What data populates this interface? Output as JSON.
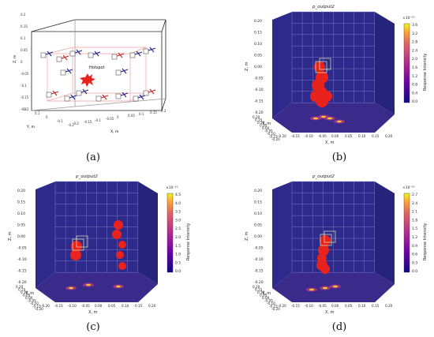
{
  "panels": {
    "a": {
      "caption": "(a)",
      "hotspot_label": "Hotspot",
      "z_ticks": [
        "0.2",
        "0.15",
        "0.1",
        "0.05",
        "0",
        "-0.05",
        "-0.1",
        "-0.15",
        "-0.2"
      ],
      "z_label": "Z, m",
      "y_ticks": [
        "0.2",
        "0.1",
        "0",
        "-0.1",
        "-0.2"
      ],
      "y_label": "Y, m",
      "x_ticks": [
        "-0.2",
        "-0.15",
        "-0.1",
        "-0.05",
        "0",
        "0.05",
        "0.1",
        "0.15",
        "0.2"
      ],
      "x_label": "X, m"
    },
    "b": {
      "caption": "(b)",
      "title": "p_output2",
      "colorbar": {
        "exponent": "×10⁻¹⁰",
        "ticks": [
          "3.6",
          "3.2",
          "2.8",
          "2.4",
          "2.0",
          "1.6",
          "1.2",
          "0.8",
          "0.4",
          "0.0"
        ],
        "label": "Response Intensity"
      }
    },
    "c": {
      "caption": "(c)",
      "title": "p_output2",
      "colorbar": {
        "exponent": "×10⁻¹⁰",
        "ticks": [
          "4.5",
          "4.0",
          "3.5",
          "3.0",
          "2.5",
          "2.0",
          "1.5",
          "1.0",
          "0.5",
          "0.0"
        ],
        "label": "Response Intensity"
      }
    },
    "d": {
      "caption": "(d)",
      "title": "p_output2",
      "colorbar": {
        "exponent": "×10⁻¹⁰",
        "ticks": [
          "2.7",
          "2.4",
          "2.1",
          "1.8",
          "1.5",
          "1.2",
          "0.9",
          "0.6",
          "0.3",
          "0.0"
        ],
        "label": "Response Intensity"
      }
    }
  },
  "common_axes": {
    "z_ticks": [
      "0.20",
      "0.15",
      "0.10",
      "0.05",
      "0.00",
      "-0.05",
      "-0.10",
      "-0.15",
      "-0.20"
    ],
    "z_label": "Z, m",
    "y_ticks": [
      "0.20",
      "0.15",
      "0.10",
      "0.05",
      "0.00",
      "-0.05",
      "-0.10",
      "-0.15",
      "-0.20"
    ],
    "y_label": "Y, m",
    "x_ticks": [
      "-0.20",
      "-0.15",
      "-0.10",
      "-0.05",
      "0.00",
      "0.05",
      "0.10",
      "0.15",
      "0.20"
    ],
    "x_label": "X, m"
  },
  "colors": {
    "pane": "#2d2a8c",
    "floor": "#3a2a8a",
    "grid": "#7a78c8",
    "blob": "#e8231e",
    "hot": "#f5d11e"
  },
  "chart_data": [
    {
      "type": "scatter",
      "panel": "a",
      "title": "",
      "note": "3D layout of sensor array around hotspot, axes X, Y, Z in m from -0.2 to 0.2",
      "xlim": [
        -0.2,
        0.2
      ],
      "ylim": [
        -0.2,
        0.2
      ],
      "zlim": [
        -0.2,
        0.2
      ]
    },
    {
      "type": "heatmap",
      "panel": "b",
      "title": "p_output2",
      "colorbar_range": [
        0.0,
        3.6
      ],
      "colorbar_scale": "1e-10",
      "xlim": [
        -0.2,
        0.2
      ],
      "ylim": [
        -0.2,
        0.2
      ],
      "zlim": [
        -0.2,
        0.2
      ]
    },
    {
      "type": "heatmap",
      "panel": "c",
      "title": "p_output2",
      "colorbar_range": [
        0.0,
        4.5
      ],
      "colorbar_scale": "1e-10",
      "xlim": [
        -0.2,
        0.2
      ],
      "ylim": [
        -0.2,
        0.2
      ],
      "zlim": [
        -0.2,
        0.2
      ]
    },
    {
      "type": "heatmap",
      "panel": "d",
      "title": "p_output2",
      "colorbar_range": [
        0.0,
        2.7
      ],
      "colorbar_scale": "1e-10",
      "xlim": [
        -0.2,
        0.2
      ],
      "ylim": [
        -0.2,
        0.2
      ],
      "zlim": [
        -0.2,
        0.2
      ]
    }
  ]
}
